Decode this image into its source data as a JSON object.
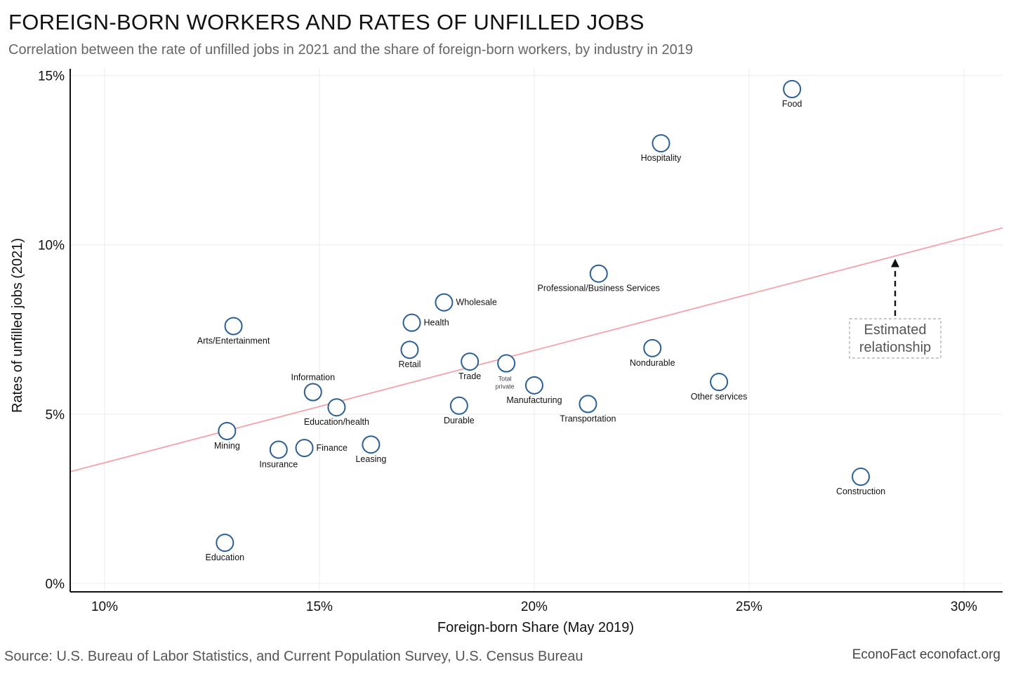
{
  "header": {
    "title": "FOREIGN-BORN WORKERS AND RATES OF UNFILLED JOBS",
    "subtitle": "Correlation between the rate of unfilled jobs in 2021 and the share of foreign-born workers, by industry in 2019"
  },
  "footer": {
    "source": "Source: U.S. Bureau of Labor Statistics, and Current Population Survey, U.S. Census Bureau",
    "credit": "EconoFact  econofact.org"
  },
  "colors": {
    "marker": "#2a5f97",
    "trend": "#f4a3a8",
    "grid": "#ececec",
    "axis": "#111111",
    "annotation_box": "#aaaaaa"
  },
  "chart_data": {
    "type": "scatter",
    "xlabel": "Foreign-born Share (May 2019)",
    "ylabel": "Rates of unfilled jobs (2021)",
    "xlim": [
      9.2,
      30.9
    ],
    "ylim": [
      -0.25,
      15.2
    ],
    "x_ticks": [
      10,
      15,
      20,
      25,
      30
    ],
    "x_tick_labels": [
      "10%",
      "15%",
      "20%",
      "25%",
      "30%"
    ],
    "y_ticks": [
      0,
      5,
      10,
      15
    ],
    "y_tick_labels": [
      "0%",
      "5%",
      "10%",
      "15%"
    ],
    "grid": true,
    "points": [
      {
        "label": "Food",
        "x": 26.0,
        "y": 14.6,
        "label_pos": "below"
      },
      {
        "label": "Hospitality",
        "x": 22.95,
        "y": 13.0,
        "label_pos": "below"
      },
      {
        "label": "Professional/Business Services",
        "x": 21.5,
        "y": 9.15,
        "label_pos": "below"
      },
      {
        "label": "Wholesale",
        "x": 17.9,
        "y": 8.3,
        "label_pos": "right"
      },
      {
        "label": "Health",
        "x": 17.15,
        "y": 7.7,
        "label_pos": "right"
      },
      {
        "label": "Arts/Entertainment",
        "x": 13.0,
        "y": 7.6,
        "label_pos": "below"
      },
      {
        "label": "Retail",
        "x": 17.1,
        "y": 6.9,
        "label_pos": "below"
      },
      {
        "label": "Nondurable",
        "x": 22.75,
        "y": 6.95,
        "label_pos": "below"
      },
      {
        "label": "Trade",
        "x": 18.5,
        "y": 6.55,
        "label_pos": "below"
      },
      {
        "label": "Total private",
        "x": 19.35,
        "y": 6.5,
        "label_pos": "below-small",
        "label_lines": [
          "Total",
          "private"
        ]
      },
      {
        "label": "Other services",
        "x": 24.3,
        "y": 5.95,
        "label_pos": "below"
      },
      {
        "label": "Manufacturing",
        "x": 20.0,
        "y": 5.85,
        "label_pos": "below"
      },
      {
        "label": "Information",
        "x": 14.85,
        "y": 5.65,
        "label_pos": "above"
      },
      {
        "label": "Transportation",
        "x": 21.25,
        "y": 5.3,
        "label_pos": "below"
      },
      {
        "label": "Durable",
        "x": 18.25,
        "y": 5.25,
        "label_pos": "below"
      },
      {
        "label": "Education/health",
        "x": 15.4,
        "y": 5.2,
        "label_pos": "below"
      },
      {
        "label": "Mining",
        "x": 12.85,
        "y": 4.5,
        "label_pos": "below"
      },
      {
        "label": "Leasing",
        "x": 16.2,
        "y": 4.1,
        "label_pos": "below"
      },
      {
        "label": "Finance",
        "x": 14.65,
        "y": 4.0,
        "label_pos": "right"
      },
      {
        "label": "Insurance",
        "x": 14.05,
        "y": 3.95,
        "label_pos": "below"
      },
      {
        "label": "Construction",
        "x": 27.6,
        "y": 3.15,
        "label_pos": "below"
      },
      {
        "label": "Education",
        "x": 12.8,
        "y": 1.2,
        "label_pos": "below"
      }
    ],
    "trend_line": {
      "x": [
        9.2,
        30.9
      ],
      "y": [
        3.3,
        10.5
      ]
    },
    "annotation": {
      "lines": [
        "Estimated",
        "relationship"
      ],
      "arrow_from": [
        28.4,
        7.9
      ],
      "arrow_to": [
        28.4,
        9.55
      ]
    }
  }
}
